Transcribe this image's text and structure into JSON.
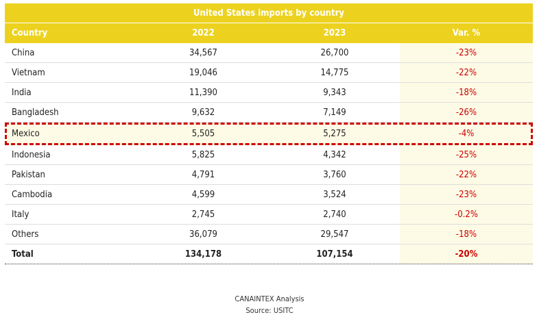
{
  "title": "United States imports by country",
  "headers": [
    "Country",
    "2022",
    "2023",
    "Var. %"
  ],
  "rows": [
    [
      "China",
      "34,567",
      "26,700",
      "-23%"
    ],
    [
      "Vietnam",
      "19,046",
      "14,775",
      "-22%"
    ],
    [
      "India",
      "11,390",
      "9,343",
      "-18%"
    ],
    [
      "Bangladesh",
      "9,632",
      "7,149",
      "-26%"
    ],
    [
      "Mexico",
      "5,505",
      "5,275",
      "-4%"
    ],
    [
      "Indonesia",
      "5,825",
      "4,342",
      "-25%"
    ],
    [
      "Pakistan",
      "4,791",
      "3,760",
      "-22%"
    ],
    [
      "Cambodia",
      "4,599",
      "3,524",
      "-23%"
    ],
    [
      "Italy",
      "2,745",
      "2,740",
      "-0.2%"
    ],
    [
      "Others",
      "36,079",
      "29,547",
      "-18%"
    ]
  ],
  "total": [
    "Total",
    "134,178",
    "107,154",
    "-20%"
  ],
  "highlighted_row": "Mexico",
  "colors": {
    "header": "#ecd21f",
    "negative": "#cc0000",
    "highlight_border": "#cc0000",
    "var_column_bg": "#fdfbe6"
  },
  "footer": {
    "analysis": "CANAINTEX Analysis",
    "source": "Source: USITC"
  }
}
